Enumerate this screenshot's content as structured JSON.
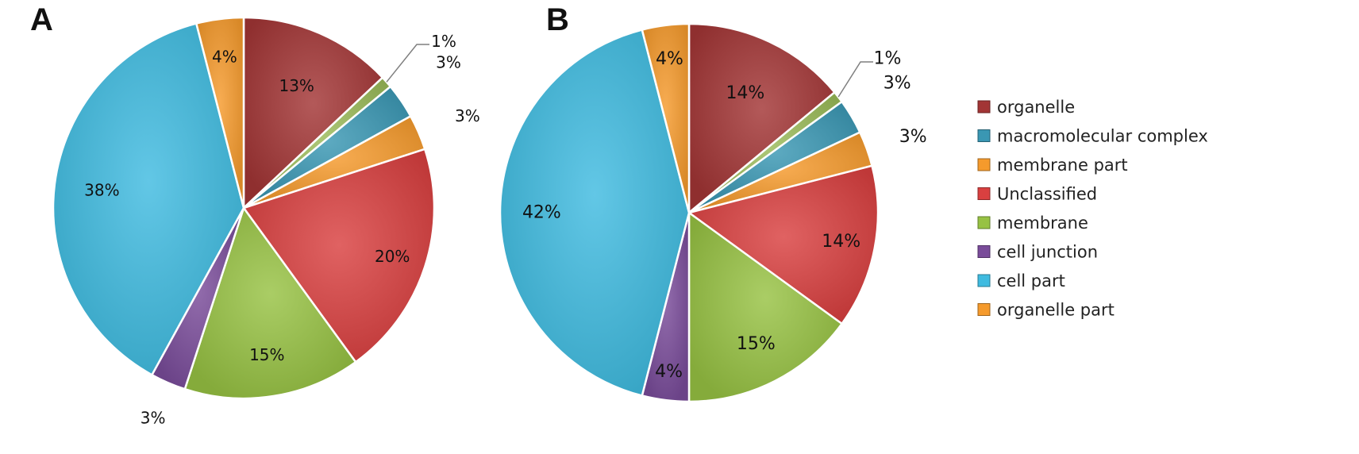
{
  "chart_data": [
    {
      "type": "pie",
      "panel_label": "A",
      "categories": [
        "organelle",
        "macromolecular complex",
        "membrane part",
        "Unclassified",
        "membrane",
        "cell junction",
        "cell part",
        "organelle part"
      ],
      "values": [
        13,
        3,
        3,
        20,
        15,
        3,
        38,
        4
      ],
      "extra_slice": {
        "value": 1,
        "label": "1%",
        "color": "#9bbb59",
        "insert_after": "organelle"
      },
      "labels": [
        "13%",
        "3%",
        "3%",
        "20%",
        "15%",
        "3%",
        "38%",
        "4%"
      ],
      "colors": [
        "#a23535",
        "#3a97b3",
        "#f59a2c",
        "#d94040",
        "#97c243",
        "#7a4c9a",
        "#3fbbe0",
        "#f59a2c"
      ],
      "start": "12 o'clock",
      "direction": "clockwise"
    },
    {
      "type": "pie",
      "panel_label": "B",
      "categories": [
        "organelle",
        "macromolecular complex",
        "membrane part",
        "Unclassified",
        "membrane",
        "cell junction",
        "cell part",
        "organelle part"
      ],
      "values": [
        14,
        3,
        3,
        14,
        15,
        4,
        42,
        4
      ],
      "extra_slice": {
        "value": 1,
        "label": "1%",
        "color": "#9bbb59",
        "insert_after": "organelle"
      },
      "labels": [
        "14%",
        "3%",
        "3%",
        "14%",
        "15%",
        "4%",
        "42%",
        "4%"
      ],
      "colors": [
        "#a23535",
        "#3a97b3",
        "#f59a2c",
        "#d94040",
        "#97c243",
        "#7a4c9a",
        "#3fbbe0",
        "#f59a2c"
      ],
      "start": "12 o'clock",
      "direction": "clockwise"
    }
  ],
  "legend": {
    "placement": "right",
    "items": [
      {
        "label": "organelle",
        "color": "#a23535"
      },
      {
        "label": "macromolecular complex",
        "color": "#3a97b3"
      },
      {
        "label": "membrane part",
        "color": "#f59a2c"
      },
      {
        "label": "Unclassified",
        "color": "#d94040"
      },
      {
        "label": "membrane",
        "color": "#97c243"
      },
      {
        "label": "cell junction",
        "color": "#7a4c9a"
      },
      {
        "label": "cell part",
        "color": "#3fbbe0"
      },
      {
        "label": "organelle part",
        "color": "#f59a2c"
      }
    ]
  }
}
